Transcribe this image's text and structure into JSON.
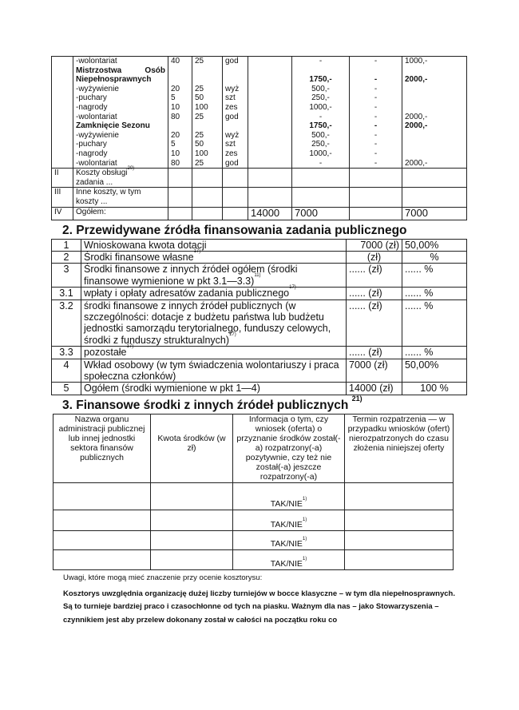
{
  "cost_table": {
    "rows": [
      {
        "name": "-wolontariat",
        "c1": "40",
        "c2": "25",
        "c3": "god",
        "c5": "-",
        "c6": "-",
        "c7": "1000,-"
      }
    ],
    "blocks": [
      {
        "title": "Mistrzostwa Osób Niepełnosprawnych",
        "total5": "1750,-",
        "total6": "-",
        "total7": "2000,-",
        "items": [
          {
            "name": "-wyżywienie",
            "c1": "20",
            "c2": "25",
            "c3": "wyż",
            "c5": "500,-",
            "c6": "-",
            "c7": ""
          },
          {
            "name": "-puchary",
            "c1": "5",
            "c2": "50",
            "c3": "szt",
            "c5": "250,-",
            "c6": "-",
            "c7": ""
          },
          {
            "name": "-nagrody",
            "c1": "10",
            "c2": "100",
            "c3": "zes",
            "c5": "1000,-",
            "c6": "-",
            "c7": ""
          },
          {
            "name": "-wolontariat",
            "c1": "80",
            "c2": "25",
            "c3": "god",
            "c5": "-",
            "c6": "-",
            "c7": "2000,-"
          }
        ]
      },
      {
        "title": "Zamknięcie Sezonu",
        "total5": "1750,-",
        "total6": "-",
        "total7": "2000,-",
        "items": [
          {
            "name": "-wyżywienie",
            "c1": "20",
            "c2": "25",
            "c3": "wyż",
            "c5": "500,-",
            "c6": "-",
            "c7": ""
          },
          {
            "name": "-puchary",
            "c1": "5",
            "c2": "50",
            "c3": "szt",
            "c5": "250,-",
            "c6": "-",
            "c7": ""
          },
          {
            "name": "-nagrody",
            "c1": "10",
            "c2": "100",
            "c3": "zes",
            "c5": "1000,-",
            "c6": "-",
            "c7": ""
          },
          {
            "name": "-wolontariat",
            "c1": "80",
            "c2": "25",
            "c3": "god",
            "c5": "-",
            "c6": "-",
            "c7": "2000,-"
          }
        ]
      }
    ],
    "row_II": {
      "num": "II",
      "label": "Koszty obsługi",
      "sup": "20)",
      "label2": "zadania ..."
    },
    "row_III": {
      "num": "III",
      "label": "Inne koszty, w tym koszty ..."
    },
    "row_IV": {
      "num": "IV",
      "label": "Ogółem:",
      "c4": "14000",
      "c5": "7000",
      "c7": "7000"
    }
  },
  "section2": {
    "heading": "2. Przewidywane źródła finansowania zadania publicznego",
    "rows": [
      {
        "num": "1",
        "label": "Wnioskowana kwota dotacji",
        "sup": "",
        "amount": "7000 (zł)",
        "pct": "50,00%"
      },
      {
        "num": "2",
        "label": "Środki finansowe własne",
        "sup": "17)",
        "amount": "(zł)",
        "pct": "%"
      },
      {
        "num": "3",
        "label": "Środki finansowe z innych źródeł ogółem (środki finansowe wymienione w pkt 3.1—3.3)",
        "sup": "11)",
        "amount": "...... (zł)",
        "pct": "...... %"
      },
      {
        "num": "3.1",
        "label": "wpłaty i opłaty adresatów zadania publicznego",
        "sup": "17)",
        "amount": "...... (zł)",
        "pct": "...... %"
      },
      {
        "num": "3.2",
        "label": "środki finansowe z innych źródeł publicznych (w szczególności: dotacje z budżetu państwa lub budżetu jednostki samorządu terytorialnego, funduszy celowych, środki z funduszy strukturalnych)",
        "sup": "17)",
        "amount": "...... (zł)",
        "pct": "...... %"
      },
      {
        "num": "3.3",
        "label": "pozostałe",
        "sup": "17)",
        "amount": "...... (zł)",
        "pct": "...... %"
      },
      {
        "num": "4",
        "label": "Wkład osobowy (w tym świadczenia wolontariuszy i praca społeczna członków)",
        "sup": "",
        "amount": "7000 (zł)",
        "pct": "50,00%"
      },
      {
        "num": "5",
        "label": "Ogółem (środki wymienione w pkt 1—4)",
        "sup": "",
        "amount": "14000 (zł)",
        "pct": "100 %"
      }
    ]
  },
  "section3": {
    "heading": "3. Finansowe środki z innych źródeł publicznych",
    "heading_sup": "21)",
    "headers": [
      "Nazwa organu administracji publicznej lub innej jednostki sektora finansów publicznych",
      "Kwota środków (w zł)",
      "Informacja o tym, czy wniosek (oferta) o przyznanie środków został(-a) rozpatrzony(-a) pozytywnie, czy też nie został(-a) jeszcze rozpatrzony(-a)",
      "Termin rozpatrzenia — w przypadku wniosków (ofert) nierozpatrzonych do czasu złożenia niniejszej oferty"
    ],
    "row_value": "TAK/NIE",
    "row_sup": "1)"
  },
  "remarks": {
    "label": "Uwagi, które mogą mieć znaczenie przy ocenie kosztorysu:",
    "text": "Kosztorys uwzględnia organizację dużej liczby turniejów w bocce klasyczne – w tym dla niepełnosprawnych. Są to turnieje bardziej praco i czasochłonne od tych na piasku. Ważnym dla nas – jako Stowarzyszenia – czynnikiem jest aby przelew dokonany został w całości na początku roku co"
  }
}
